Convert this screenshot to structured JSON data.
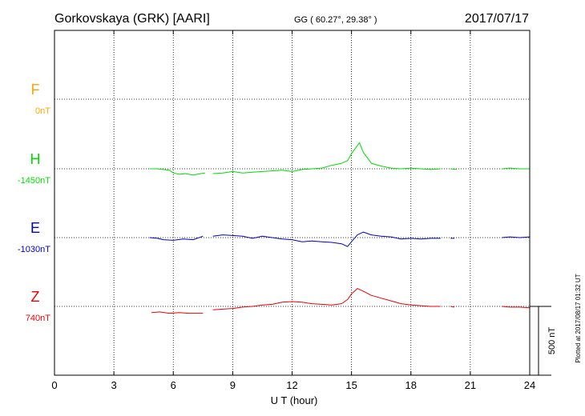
{
  "header": {
    "station": "Gorkovskaya (GRK)  [AARI]",
    "coords": "GG ( 60.27°,  29.38° )",
    "date": "2017/07/17"
  },
  "footer": {
    "plotted": "Plotted at 2017/08/17 01:32 UT"
  },
  "chart_data": {
    "type": "line",
    "xlabel": "U T (hour)",
    "xlim": [
      0,
      24
    ],
    "xticks": [
      "0",
      "3",
      "6",
      "9",
      "12",
      "15",
      "18",
      "21",
      "24"
    ],
    "scale_label": "500 nT",
    "colors": {
      "F": "#ffa500",
      "H": "#00dd00",
      "E": "#0000cc",
      "Z": "#ee0000"
    },
    "series": [
      {
        "name": "F",
        "baseline_label": "0nT",
        "values": []
      },
      {
        "name": "H",
        "baseline_label": "-1450nT",
        "segments": [
          [
            [
              4.8,
              0
            ],
            [
              5.2,
              0
            ],
            [
              5.5,
              -5
            ],
            [
              5.8,
              -10
            ],
            [
              6.0,
              -30
            ],
            [
              6.3,
              -40
            ],
            [
              6.6,
              -35
            ],
            [
              7.0,
              -45
            ],
            [
              7.4,
              -35
            ],
            [
              7.6,
              -30
            ]
          ],
          [
            [
              8.0,
              -35
            ],
            [
              8.5,
              -30
            ],
            [
              9.0,
              -20
            ],
            [
              9.5,
              -30
            ],
            [
              10.0,
              -25
            ],
            [
              10.5,
              -20
            ],
            [
              11.0,
              -15
            ],
            [
              11.5,
              -10
            ],
            [
              12.0,
              -20
            ],
            [
              12.5,
              -5
            ],
            [
              13.0,
              0
            ],
            [
              13.5,
              5
            ],
            [
              14.0,
              25
            ],
            [
              14.5,
              40
            ],
            [
              14.8,
              60
            ],
            [
              15.0,
              110
            ],
            [
              15.2,
              150
            ],
            [
              15.4,
              190
            ],
            [
              15.6,
              120
            ],
            [
              15.8,
              80
            ],
            [
              16.0,
              40
            ],
            [
              16.5,
              20
            ],
            [
              17.0,
              5
            ],
            [
              17.5,
              0
            ],
            [
              18.0,
              5
            ],
            [
              18.5,
              0
            ],
            [
              19.0,
              -5
            ],
            [
              19.5,
              0
            ]
          ],
          [
            [
              20.0,
              0
            ],
            [
              20.3,
              -5
            ]
          ],
          [
            [
              22.6,
              0
            ],
            [
              23.0,
              5
            ],
            [
              23.5,
              0
            ],
            [
              24.0,
              0
            ]
          ]
        ]
      },
      {
        "name": "E",
        "baseline_label": "-1030nT",
        "segments": [
          [
            [
              4.8,
              0
            ],
            [
              5.2,
              -5
            ],
            [
              5.5,
              -15
            ],
            [
              6.0,
              -20
            ],
            [
              6.5,
              -10
            ],
            [
              7.0,
              -15
            ],
            [
              7.5,
              10
            ]
          ],
          [
            [
              8.0,
              10
            ],
            [
              8.5,
              20
            ],
            [
              9.0,
              15
            ],
            [
              9.5,
              10
            ],
            [
              10.0,
              -5
            ],
            [
              10.5,
              10
            ],
            [
              11.0,
              0
            ],
            [
              11.5,
              -10
            ],
            [
              12.0,
              -15
            ],
            [
              12.5,
              -30
            ],
            [
              13.0,
              -25
            ],
            [
              13.5,
              -30
            ],
            [
              14.0,
              -35
            ],
            [
              14.5,
              -45
            ],
            [
              14.8,
              -65
            ],
            [
              15.0,
              -30
            ],
            [
              15.3,
              20
            ],
            [
              15.6,
              40
            ],
            [
              16.0,
              20
            ],
            [
              16.5,
              10
            ],
            [
              17.0,
              5
            ],
            [
              17.5,
              -10
            ],
            [
              18.0,
              -5
            ],
            [
              18.5,
              -10
            ],
            [
              19.0,
              -5
            ],
            [
              19.5,
              -5
            ]
          ],
          [
            [
              20.0,
              -5
            ],
            [
              20.2,
              -5
            ]
          ],
          [
            [
              22.6,
              0
            ],
            [
              23.0,
              5
            ],
            [
              23.5,
              0
            ],
            [
              24.0,
              5
            ]
          ]
        ]
      },
      {
        "name": "Z",
        "baseline_label": "740nT",
        "segments": [
          [
            [
              4.9,
              -45
            ],
            [
              5.3,
              -40
            ],
            [
              5.8,
              -50
            ],
            [
              6.3,
              -45
            ],
            [
              6.8,
              -50
            ],
            [
              7.5,
              -50
            ]
          ],
          [
            [
              8.0,
              -25
            ],
            [
              8.5,
              -20
            ],
            [
              9.0,
              -15
            ],
            [
              9.5,
              -5
            ],
            [
              10.0,
              0
            ],
            [
              10.5,
              10
            ],
            [
              11.0,
              15
            ],
            [
              11.5,
              30
            ],
            [
              12.0,
              35
            ],
            [
              12.5,
              30
            ],
            [
              13.0,
              20
            ],
            [
              13.5,
              15
            ],
            [
              14.0,
              10
            ],
            [
              14.5,
              20
            ],
            [
              14.8,
              50
            ],
            [
              15.0,
              90
            ],
            [
              15.3,
              130
            ],
            [
              15.6,
              110
            ],
            [
              16.0,
              80
            ],
            [
              16.5,
              60
            ],
            [
              17.0,
              40
            ],
            [
              17.5,
              20
            ],
            [
              18.0,
              10
            ],
            [
              18.5,
              5
            ],
            [
              19.0,
              0
            ],
            [
              19.5,
              0
            ]
          ],
          [
            [
              20.0,
              0
            ],
            [
              20.2,
              -5
            ]
          ],
          [
            [
              22.6,
              0
            ],
            [
              23.0,
              -5
            ],
            [
              23.5,
              -5
            ],
            [
              24.0,
              -10
            ]
          ]
        ]
      }
    ]
  }
}
